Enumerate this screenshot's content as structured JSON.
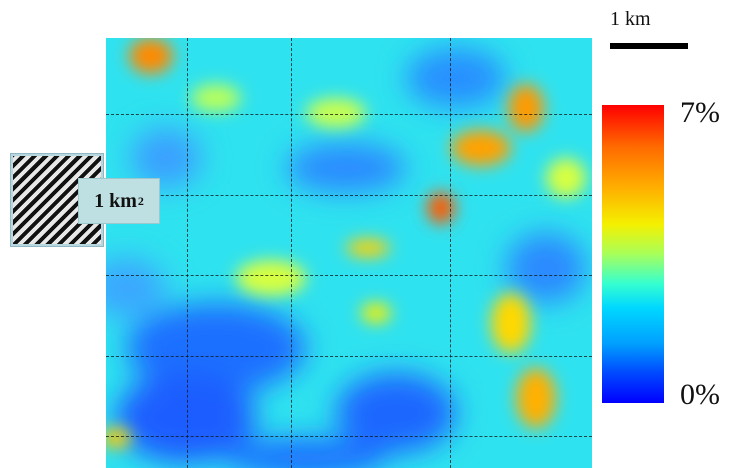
{
  "scale_bar": {
    "label": "1 km"
  },
  "area_legend": {
    "label": "1 km",
    "label_superscript": "2"
  },
  "colorbar": {
    "max_label": "7%",
    "min_label": "0%",
    "max_value": 7,
    "min_value": 0,
    "colors": [
      "#0000ff",
      "#00a0ff",
      "#35ffd0",
      "#f4f000",
      "#ff7a00",
      "#ff0000"
    ]
  },
  "grid": {
    "columns": 3,
    "rows": 5
  }
}
